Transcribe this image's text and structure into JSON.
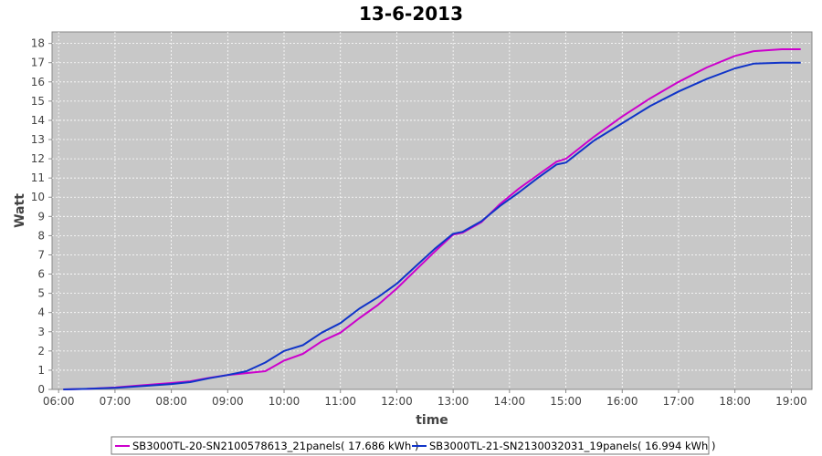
{
  "chart_data": {
    "type": "line",
    "title": "13-6-2013",
    "xlabel": "time",
    "ylabel": "Watt",
    "x_ticks": [
      "06:00",
      "07:00",
      "08:00",
      "09:00",
      "10:00",
      "11:00",
      "12:00",
      "13:00",
      "14:00",
      "15:00",
      "16:00",
      "17:00",
      "18:00",
      "19:00"
    ],
    "xlim": [
      "05:53",
      "19:22"
    ],
    "ylim": [
      0,
      18.6
    ],
    "y_ticks": [
      0,
      1,
      2,
      3,
      4,
      5,
      6,
      7,
      8,
      9,
      10,
      11,
      12,
      13,
      14,
      15,
      16,
      17,
      18
    ],
    "grid": true,
    "legend_position": "bottom",
    "background": "#c8c8c8",
    "series": [
      {
        "name": "SB3000TL-20-SN2100578613_21panels( 17.686 kWh )",
        "color": "#cc00cc",
        "x": [
          "06:05",
          "06:30",
          "07:00",
          "07:30",
          "08:00",
          "08:20",
          "08:40",
          "09:00",
          "09:20",
          "09:40",
          "10:00",
          "10:20",
          "10:40",
          "11:00",
          "11:20",
          "11:40",
          "12:00",
          "12:20",
          "12:40",
          "13:00",
          "13:10",
          "13:30",
          "13:50",
          "14:10",
          "14:30",
          "14:50",
          "15:00",
          "15:30",
          "16:00",
          "16:30",
          "17:00",
          "17:30",
          "18:00",
          "18:20",
          "18:50",
          "19:10"
        ],
        "y": [
          0.0,
          0.03,
          0.1,
          0.22,
          0.33,
          0.42,
          0.6,
          0.75,
          0.85,
          0.95,
          1.5,
          1.85,
          2.5,
          2.95,
          3.7,
          4.4,
          5.25,
          6.2,
          7.15,
          8.05,
          8.15,
          8.7,
          9.65,
          10.45,
          11.15,
          11.85,
          12.0,
          13.15,
          14.2,
          15.15,
          16.0,
          16.75,
          17.35,
          17.6,
          17.7,
          17.7
        ]
      },
      {
        "name": "SB3000TL-21-SN2130032031_19panels( 16.994 kWh )",
        "color": "#1034c8",
        "x": [
          "06:05",
          "06:30",
          "07:00",
          "07:30",
          "08:00",
          "08:20",
          "08:40",
          "09:00",
          "09:20",
          "09:40",
          "10:00",
          "10:20",
          "10:40",
          "11:00",
          "11:20",
          "11:40",
          "12:00",
          "12:20",
          "12:40",
          "13:00",
          "13:10",
          "13:30",
          "13:50",
          "14:10",
          "14:30",
          "14:50",
          "15:00",
          "15:30",
          "16:00",
          "16:30",
          "17:00",
          "17:30",
          "18:00",
          "18:20",
          "18:50",
          "19:10"
        ],
        "y": [
          0.0,
          0.03,
          0.08,
          0.18,
          0.28,
          0.38,
          0.58,
          0.75,
          0.95,
          1.4,
          2.0,
          2.3,
          2.95,
          3.45,
          4.2,
          4.8,
          5.5,
          6.4,
          7.3,
          8.1,
          8.2,
          8.75,
          9.55,
          10.25,
          11.0,
          11.7,
          11.8,
          12.95,
          13.85,
          14.75,
          15.5,
          16.15,
          16.7,
          16.95,
          17.0,
          17.0
        ]
      }
    ]
  }
}
